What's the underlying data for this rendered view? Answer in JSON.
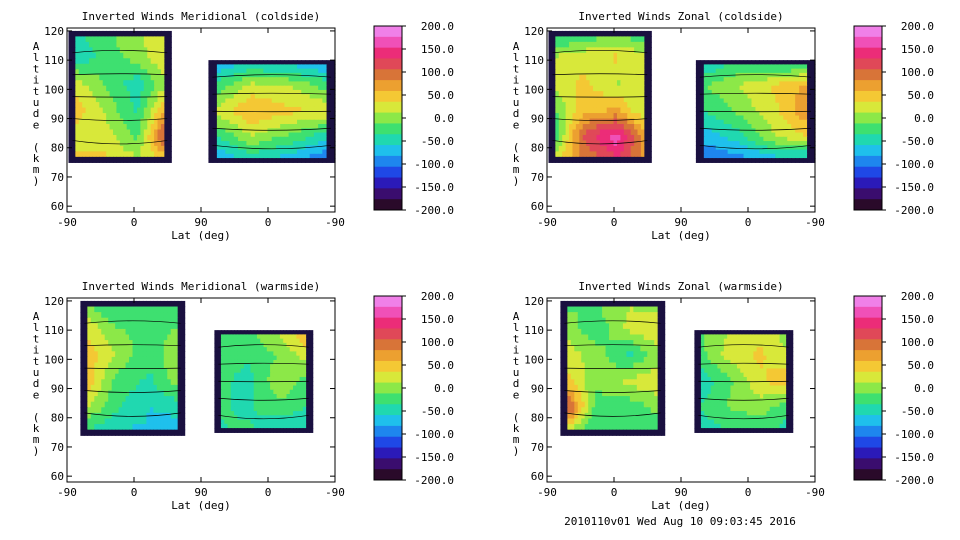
{
  "chart_data": [
    {
      "type": "heatmap",
      "title": "Inverted Winds Meridional (coldside)",
      "xlabel": "Lat (deg)",
      "ylabel": "Altitude (km)",
      "x_ticks": [
        "-90",
        "0",
        "90",
        "0",
        "-90"
      ],
      "y_ticks": [
        "60",
        "70",
        "80",
        "90",
        "100",
        "110",
        "120"
      ],
      "ylim": [
        58,
        121
      ],
      "colorbar_ticks": [
        "200.0",
        "150.0",
        "100.0",
        "50.0",
        "0.0",
        "-50.0",
        "-100.0",
        "-150.0",
        "-200.0"
      ],
      "clim": [
        -200,
        200
      ],
      "regions": [
        {
          "x": [
            -88,
            50
          ],
          "y": [
            75,
            120
          ],
          "levels": [
            [
              -40,
              -20,
              10,
              30
            ],
            [
              -60,
              -30,
              0,
              40
            ],
            [
              30,
              -10,
              -50,
              20
            ],
            [
              60,
              10,
              -40,
              80
            ],
            [
              20,
              30,
              -20,
              150
            ],
            [
              50,
              40,
              20,
              30
            ]
          ]
        },
        {
          "x": [
            100,
            270
          ],
          "y": [
            75,
            110
          ],
          "levels": [
            [
              -90,
              -70,
              -80,
              -100
            ],
            [
              -40,
              20,
              10,
              -30
            ],
            [
              10,
              60,
              40,
              30
            ],
            [
              -50,
              10,
              -20,
              -60
            ],
            [
              -100,
              -60,
              -80,
              -120
            ]
          ]
        }
      ]
    },
    {
      "type": "heatmap",
      "title": "Inverted Winds Zonal (coldside)",
      "xlabel": "Lat (deg)",
      "ylabel": "Altitude (km)",
      "x_ticks": [
        "-90",
        "0",
        "90",
        "0",
        "-90"
      ],
      "y_ticks": [
        "60",
        "70",
        "80",
        "90",
        "100",
        "110",
        "120"
      ],
      "ylim": [
        58,
        121
      ],
      "colorbar_ticks": [
        "200.0",
        "150.0",
        "100.0",
        "50.0",
        "0.0",
        "-50.0",
        "-100.0",
        "-150.0",
        "-200.0"
      ],
      "clim": [
        -200,
        200
      ],
      "regions": [
        {
          "x": [
            -88,
            50
          ],
          "y": [
            75,
            120
          ],
          "levels": [
            [
              -60,
              -40,
              -20,
              -50
            ],
            [
              10,
              30,
              40,
              20
            ],
            [
              20,
              40,
              10,
              30
            ],
            [
              -30,
              50,
              60,
              0
            ],
            [
              -70,
              110,
              170,
              40
            ],
            [
              30,
              80,
              120,
              60
            ]
          ]
        },
        {
          "x": [
            110,
            270
          ],
          "y": [
            75,
            110
          ],
          "levels": [
            [
              -70,
              -40,
              -60,
              -50
            ],
            [
              -20,
              10,
              40,
              70
            ],
            [
              -40,
              -10,
              30,
              90
            ],
            [
              -80,
              -50,
              10,
              40
            ],
            [
              -110,
              -100,
              -80,
              -90
            ]
          ]
        }
      ]
    },
    {
      "type": "heatmap",
      "title": "Inverted Winds Meridional (warmside)",
      "xlabel": "Lat (deg)",
      "ylabel": "Altitude (km)",
      "x_ticks": [
        "-90",
        "0",
        "90",
        "0",
        "-90"
      ],
      "y_ticks": [
        "60",
        "70",
        "80",
        "90",
        "100",
        "110",
        "120"
      ],
      "ylim": [
        58,
        121
      ],
      "colorbar_ticks": [
        "200.0",
        "150.0",
        "100.0",
        "50.0",
        "0.0",
        "-50.0",
        "-100.0",
        "-150.0",
        "-200.0"
      ],
      "clim": [
        -200,
        200
      ],
      "regions": [
        {
          "x": [
            -72,
            68
          ],
          "y": [
            74,
            120
          ],
          "levels": [
            [
              -20,
              -40,
              -30,
              -50
            ],
            [
              40,
              -10,
              -20,
              -10
            ],
            [
              60,
              10,
              -30,
              20
            ],
            [
              70,
              -20,
              -40,
              10
            ],
            [
              20,
              -30,
              -60,
              -50
            ],
            [
              -40,
              -70,
              -60,
              -80
            ]
          ]
        },
        {
          "x": [
            108,
            240
          ],
          "y": [
            75,
            110
          ],
          "levels": [
            [
              -30,
              -20,
              20,
              70
            ],
            [
              -10,
              -30,
              -10,
              30
            ],
            [
              -20,
              -50,
              10,
              -30
            ],
            [
              -30,
              -40,
              -20,
              -40
            ],
            [
              -40,
              -30,
              -60,
              -50
            ]
          ]
        }
      ]
    },
    {
      "type": "heatmap",
      "title": "Inverted Winds Zonal (warmside)",
      "xlabel": "Lat (deg)",
      "ylabel": "Altitude (km)",
      "x_ticks": [
        "-90",
        "0",
        "90",
        "0",
        "-90"
      ],
      "y_ticks": [
        "60",
        "70",
        "80",
        "90",
        "100",
        "110",
        "120"
      ],
      "ylim": [
        58,
        121
      ],
      "colorbar_ticks": [
        "200.0",
        "150.0",
        "100.0",
        "50.0",
        "0.0",
        "-50.0",
        "-100.0",
        "-150.0",
        "-200.0"
      ],
      "clim": [
        -200,
        200
      ],
      "regions": [
        {
          "x": [
            -72,
            68
          ],
          "y": [
            74,
            120
          ],
          "levels": [
            [
              -20,
              -10,
              10,
              -20
            ],
            [
              10,
              -30,
              20,
              40
            ],
            [
              30,
              0,
              -40,
              10
            ],
            [
              60,
              -10,
              20,
              30
            ],
            [
              150,
              -20,
              -30,
              0
            ],
            [
              -10,
              -40,
              -20,
              -30
            ]
          ]
        },
        {
          "x": [
            108,
            240
          ],
          "y": [
            75,
            110
          ],
          "levels": [
            [
              -20,
              10,
              30,
              -10
            ],
            [
              -30,
              20,
              40,
              10
            ],
            [
              -60,
              -20,
              30,
              60
            ],
            [
              -40,
              -10,
              0,
              -30
            ],
            [
              -50,
              -40,
              -30,
              -50
            ]
          ]
        }
      ]
    }
  ],
  "footer": {
    "run_label": "2010110v01 Wed Aug 10 09:03:45 2016"
  }
}
